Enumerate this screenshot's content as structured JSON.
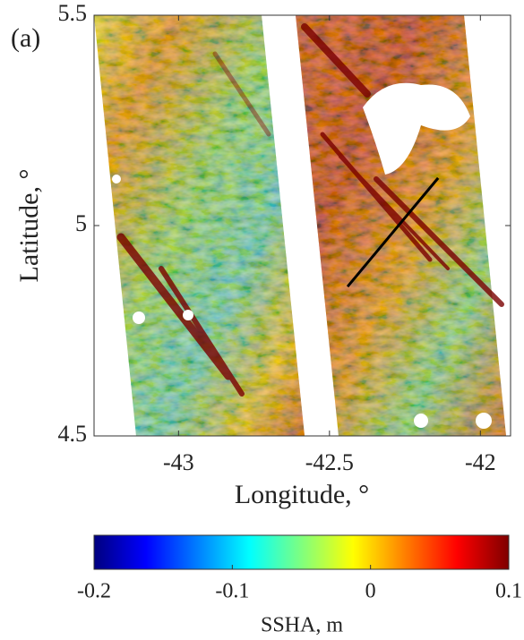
{
  "chart_data": {
    "type": "heatmap",
    "panel_label": "(a)",
    "xlabel": "Longitude, °",
    "ylabel": "Latitude, °",
    "xlim": [
      -43.28,
      -41.9
    ],
    "ylim": [
      4.5,
      5.5
    ],
    "xticks": [
      -43,
      -42.5,
      -42
    ],
    "yticks": [
      4.5,
      5,
      5.5
    ],
    "colorbar": {
      "label": "SSHA, m",
      "colormap": "jet",
      "lim": [
        -0.2,
        0.1
      ],
      "ticks": [
        -0.2,
        -0.1,
        0,
        0.1
      ]
    },
    "transect": {
      "color": "#000000",
      "x": [
        -42.44,
        -42.14
      ],
      "y": [
        4.855,
        5.113
      ]
    }
  }
}
